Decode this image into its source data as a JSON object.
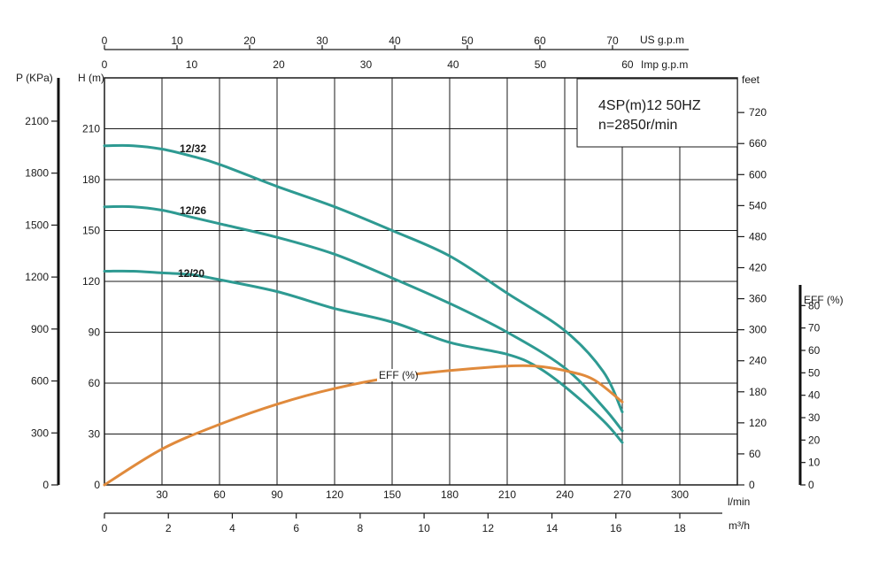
{
  "chart_data": {
    "type": "line",
    "info_box": {
      "line1": "4SP(m)12  50HZ",
      "line2": "n=2850r/min"
    },
    "axes": {
      "flow_lpm": {
        "unit": "l/min",
        "range": [
          0,
          330
        ],
        "ticks": [
          0,
          30,
          60,
          90,
          120,
          150,
          180,
          210,
          240,
          270,
          300
        ]
      },
      "flow_m3h": {
        "unit": "m³/h",
        "range": [
          0,
          19.8
        ],
        "ticks": [
          0,
          2,
          4,
          6,
          8,
          10,
          12,
          14,
          16,
          18
        ]
      },
      "flow_us_gpm": {
        "unit": "US g.p.m",
        "range": [
          0,
          87.2
        ],
        "ticks": [
          0,
          10,
          20,
          30,
          40,
          50,
          60,
          70
        ]
      },
      "flow_imp_gpm": {
        "unit": "Imp g.p.m",
        "range": [
          0,
          72.6
        ],
        "ticks": [
          0,
          10,
          20,
          30,
          40,
          50,
          60
        ]
      },
      "head_m": {
        "unit": "H (m)",
        "range": [
          0,
          240
        ],
        "ticks": [
          0,
          30,
          60,
          90,
          120,
          150,
          180,
          210
        ]
      },
      "pressure_kpa": {
        "unit": "P (KPa)",
        "range": [
          0,
          2350
        ],
        "ticks": [
          0,
          300,
          600,
          900,
          1200,
          1500,
          1800,
          2100
        ]
      },
      "head_feet": {
        "unit": "feet",
        "range": [
          0,
          787
        ],
        "ticks": [
          0,
          60,
          120,
          180,
          240,
          300,
          360,
          420,
          480,
          540,
          600,
          660,
          720
        ]
      },
      "efficiency_pct": {
        "unit": "EFF (%)",
        "range": [
          0,
          90
        ],
        "ticks": [
          0,
          10,
          20,
          30,
          40,
          50,
          60,
          70,
          80
        ]
      }
    },
    "x_grid": [
      0,
      30,
      60,
      90,
      120,
      150,
      180,
      210,
      240,
      270,
      300
    ],
    "y_grid": [
      0,
      30,
      60,
      90,
      120,
      150,
      180,
      210
    ],
    "series": [
      {
        "name": "12/32",
        "color": "#2e9a92",
        "x": [
          0,
          15,
          30,
          45,
          60,
          90,
          120,
          150,
          180,
          210,
          240,
          260,
          270
        ],
        "y": [
          200,
          200,
          198,
          194,
          189,
          176,
          164,
          150,
          135,
          113,
          91,
          67,
          43
        ]
      },
      {
        "name": "12/26",
        "color": "#2e9a92",
        "x": [
          0,
          15,
          30,
          45,
          60,
          90,
          120,
          150,
          180,
          210,
          240,
          260,
          270
        ],
        "y": [
          164,
          164,
          162,
          158,
          154,
          146,
          136,
          122,
          107,
          90,
          69,
          46,
          32
        ]
      },
      {
        "name": "12/20",
        "color": "#2e9a92",
        "x": [
          0,
          15,
          30,
          45,
          60,
          90,
          120,
          150,
          180,
          210,
          225,
          240,
          260,
          270
        ],
        "y": [
          126,
          126,
          125,
          124,
          121,
          114,
          104,
          96,
          84,
          77,
          70,
          58,
          38,
          25
        ]
      },
      {
        "name": "EFF (%)",
        "axis": "efficiency_pct",
        "color": "#e08a3c",
        "x": [
          0,
          30,
          60,
          90,
          120,
          150,
          180,
          210,
          225,
          240,
          255,
          270
        ],
        "y": [
          0,
          16,
          27,
          36,
          43,
          48,
          51,
          53,
          53,
          51,
          47,
          37
        ]
      }
    ]
  }
}
